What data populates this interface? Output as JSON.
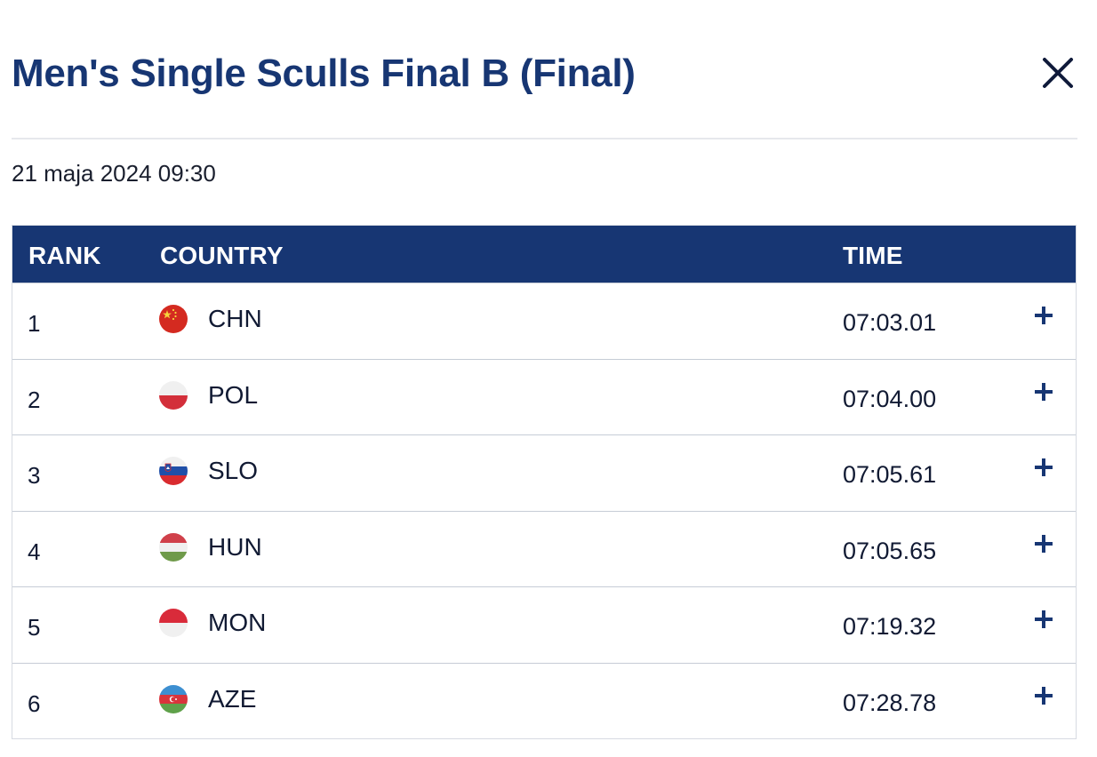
{
  "dialog": {
    "title": "Men's Single Sculls Final B (Final)",
    "date": "21 maja 2024 09:30",
    "close_icon": "close-icon"
  },
  "table": {
    "headers": {
      "rank": "RANK",
      "country": "COUNTRY",
      "time": "TIME"
    },
    "rows": [
      {
        "rank": "1",
        "code": "CHN",
        "time": "07:03.01",
        "flag": "china-flag-icon"
      },
      {
        "rank": "2",
        "code": "POL",
        "time": "07:04.00",
        "flag": "poland-flag-icon"
      },
      {
        "rank": "3",
        "code": "SLO",
        "time": "07:05.61",
        "flag": "slovenia-flag-icon"
      },
      {
        "rank": "4",
        "code": "HUN",
        "time": "07:05.65",
        "flag": "hungary-flag-icon"
      },
      {
        "rank": "5",
        "code": "MON",
        "time": "07:19.32",
        "flag": "monaco-flag-icon"
      },
      {
        "rank": "6",
        "code": "AZE",
        "time": "07:28.78",
        "flag": "azerbaijan-flag-icon"
      }
    ]
  },
  "colors": {
    "primary": "#173673",
    "text": "#111a33",
    "divider": "#e6e8ec",
    "row_border": "#c6ccd6"
  }
}
